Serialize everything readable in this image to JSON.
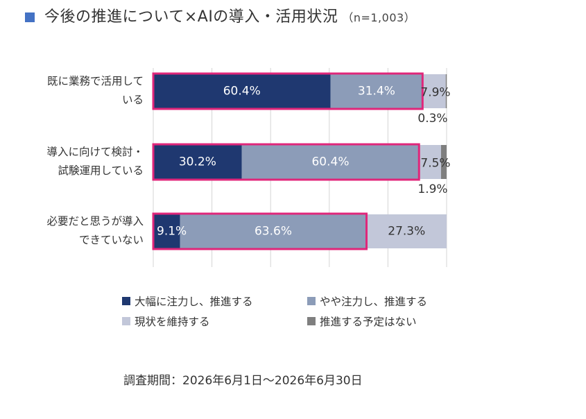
{
  "title": {
    "main": "今後の推進について×AIの導入・活用状況",
    "sample": "（n=1,003）",
    "marker_color": "#4472c4"
  },
  "chart_data": {
    "type": "bar",
    "orientation": "horizontal-stacked-100",
    "categories": [
      "既に業務で活用して\nいる",
      "導入に向けて検討・\n試験運用している",
      "必要だと思うが導入\nできていない"
    ],
    "series": [
      {
        "name": "大幅に注力し、推進する",
        "color": "#1f3870",
        "values": [
          60.4,
          30.2,
          9.1
        ],
        "labels": [
          "60.4%",
          "30.2%",
          "9.1%"
        ]
      },
      {
        "name": "やや注力し、推進する",
        "color": "#8c9cb8",
        "values": [
          31.4,
          60.4,
          63.6
        ],
        "labels": [
          "31.4%",
          "60.4%",
          "63.6%"
        ]
      },
      {
        "name": "現状を維持する",
        "color": "#c2c7d9",
        "values": [
          7.9,
          7.5,
          27.3
        ],
        "labels": [
          "7.9%",
          "7.5%",
          "27.3%"
        ]
      },
      {
        "name": "推進する予定はない",
        "color": "#7f7f7f",
        "values": [
          0.3,
          1.9,
          0
        ],
        "labels": [
          "0.3%",
          "1.9%",
          ""
        ]
      }
    ],
    "xlim": [
      0,
      100
    ],
    "grid": true,
    "highlight_color": "#e0267a",
    "legend_position": "bottom"
  },
  "footer": {
    "period": "調査期間：2026年6月1日～2026年6月30日"
  }
}
